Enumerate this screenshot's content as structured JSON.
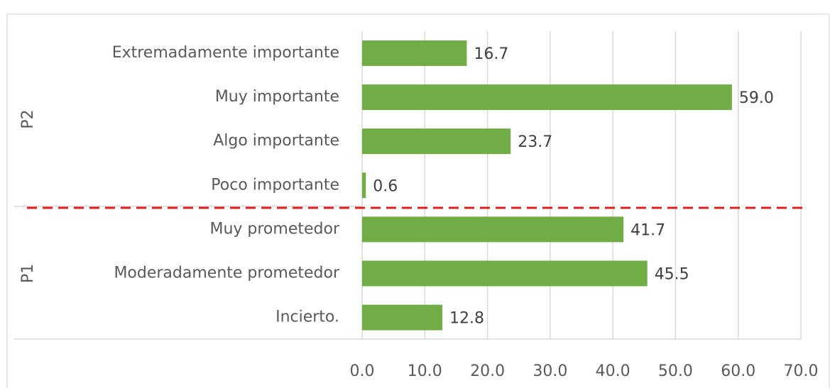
{
  "chart_data": {
    "type": "bar",
    "orientation": "horizontal",
    "color": "#70ad47",
    "grid": true,
    "groups": [
      {
        "label": "P2",
        "categories": [
          "Extremadamente importante",
          "Muy importante",
          "Algo importante",
          "Poco importante"
        ],
        "values": [
          16.7,
          59.0,
          23.7,
          0.6
        ],
        "value_labels": [
          "16.7",
          "59.0",
          "23.7",
          "0.6"
        ]
      },
      {
        "label": "P1",
        "categories": [
          "Muy prometedor",
          "Moderadamente prometedor",
          "Incierto."
        ],
        "values": [
          41.7,
          45.5,
          12.8
        ],
        "value_labels": [
          "41.7",
          "45.5",
          "12.8"
        ]
      }
    ],
    "xlim": [
      0,
      70
    ],
    "xticks": [
      {
        "value": 0,
        "label": "0.0"
      },
      {
        "value": 10,
        "label": "10.0"
      },
      {
        "value": 20,
        "label": "20.0"
      },
      {
        "value": 30,
        "label": "30.0"
      },
      {
        "value": 40,
        "label": "40.0"
      },
      {
        "value": 50,
        "label": "50.0"
      },
      {
        "value": 60,
        "label": "60.0"
      },
      {
        "value": 70,
        "label": "70.0"
      }
    ]
  }
}
